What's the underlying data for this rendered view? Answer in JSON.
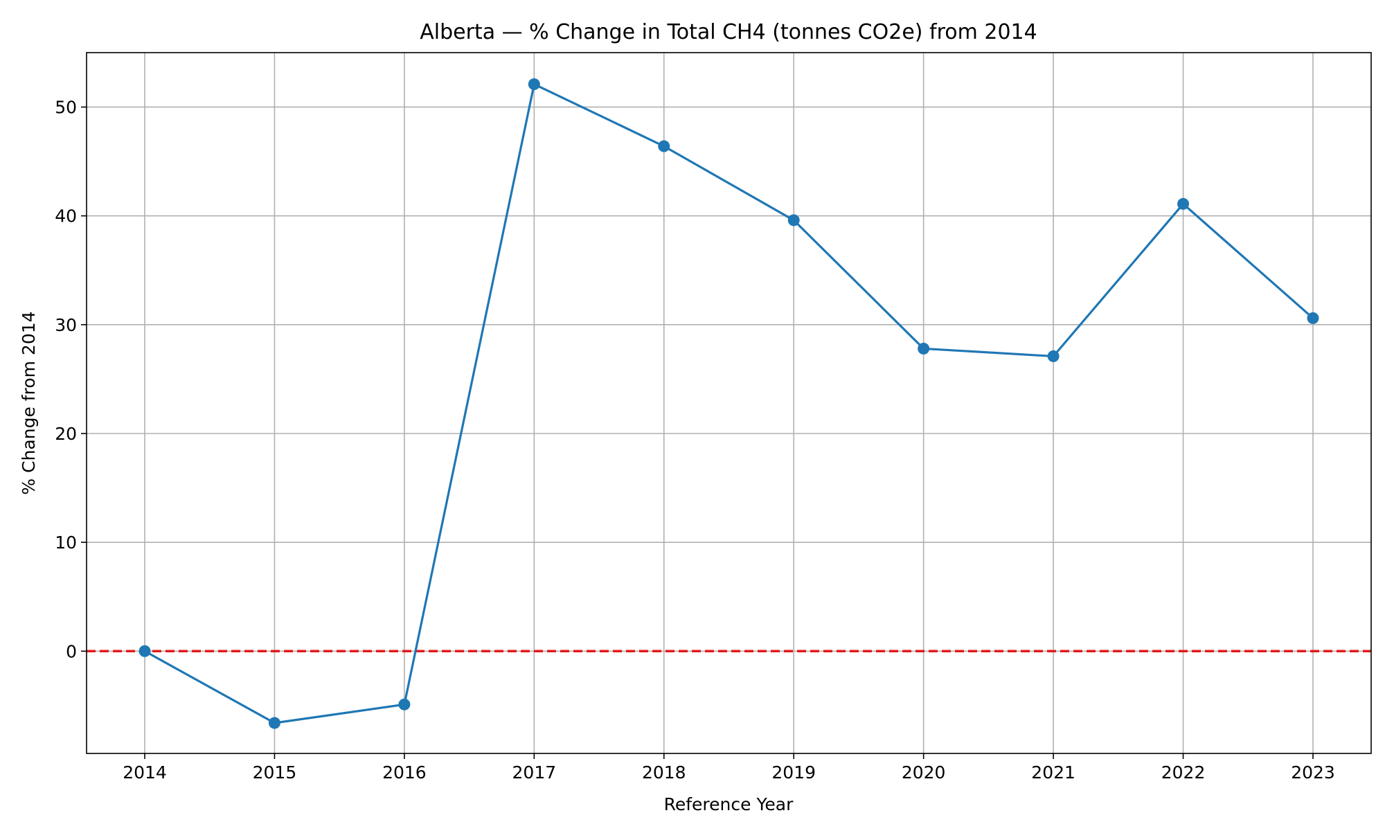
{
  "chart_data": {
    "type": "line",
    "title": "Alberta — % Change in Total CH4 (tonnes CO2e) from 2014",
    "xlabel": "Reference Year",
    "ylabel": "% Change from 2014",
    "categories": [
      "2014",
      "2015",
      "2016",
      "2017",
      "2018",
      "2019",
      "2020",
      "2021",
      "2022",
      "2023"
    ],
    "series": [
      {
        "values": [
          0,
          -6.6,
          -4.9,
          52.1,
          46.4,
          39.6,
          27.8,
          27.1,
          41.1,
          30.6
        ],
        "color": "#1f77b4",
        "marker": "circle"
      }
    ],
    "reference_line": {
      "y": 0,
      "color": "#e31a1c",
      "style": "dashed"
    },
    "ylim": [
      -9.4,
      55
    ],
    "yticks": [
      0,
      10,
      20,
      30,
      40,
      50
    ],
    "grid": true
  }
}
